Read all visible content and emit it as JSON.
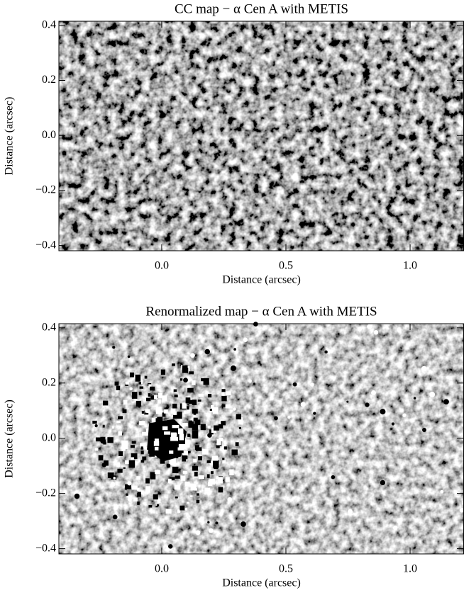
{
  "chart_data": [
    {
      "type": "image",
      "title": "CC map − α Cen A with METIS",
      "xlabel": "Distance (arcsec)",
      "ylabel": "Distance (arcsec)",
      "xlim": [
        -0.414,
        1.217
      ],
      "ylim": [
        -0.419,
        0.415
      ],
      "xticks": [
        {
          "value": 0,
          "label": "0.0"
        },
        0.5,
        {
          "value": 1,
          "label": "1.0"
        }
      ],
      "yticks": [
        {
          "value": -0.4,
          "label": "−0.4"
        },
        {
          "value": -0.2,
          "label": "−0.2"
        },
        {
          "value": 0,
          "label": "0.0"
        },
        0.2,
        0.4
      ]
    },
    {
      "type": "image",
      "title": "Renormalized map − α Cen A with METIS",
      "xlabel": "Distance (arcsec)",
      "ylabel": "Distance (arcsec)",
      "xlim": [
        -0.414,
        1.217
      ],
      "ylim": [
        -0.419,
        0.415
      ],
      "xticks": [
        {
          "value": 0,
          "label": "0.0"
        },
        0.5,
        {
          "value": 1,
          "label": "1.0"
        }
      ],
      "yticks": [
        {
          "value": -0.4,
          "label": "−0.4"
        },
        {
          "value": -0.2,
          "label": "−0.2"
        },
        {
          "value": 0,
          "label": "0.0"
        },
        0.2,
        0.4
      ]
    }
  ]
}
